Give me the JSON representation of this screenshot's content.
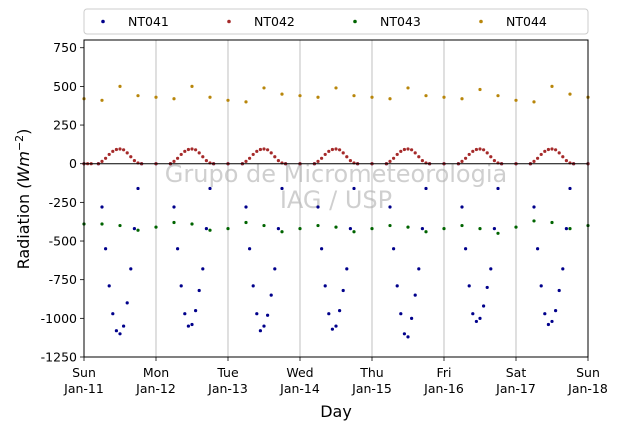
{
  "chart_data": {
    "type": "scatter",
    "xlabel": "Day",
    "ylabel": "Radiation",
    "ylabel_unit_math": "(Wm",
    "ylabel_unit_exp": "−2",
    "ylim": [
      -1250,
      800
    ],
    "yticks": [
      -1250,
      -1000,
      -750,
      -500,
      -250,
      0,
      250,
      500,
      750
    ],
    "xlim": [
      0,
      7
    ],
    "xticks": [
      {
        "day": 0,
        "weekday": "Sun",
        "date": "Jan-11"
      },
      {
        "day": 1,
        "weekday": "Mon",
        "date": "Jan-12"
      },
      {
        "day": 2,
        "weekday": "Tue",
        "date": "Jan-13"
      },
      {
        "day": 3,
        "weekday": "Wed",
        "date": "Jan-14"
      },
      {
        "day": 4,
        "weekday": "Thu",
        "date": "Jan-15"
      },
      {
        "day": 5,
        "weekday": "Fri",
        "date": "Jan-16"
      },
      {
        "day": 6,
        "weekday": "Sat",
        "date": "Jan-17"
      },
      {
        "day": 7,
        "weekday": "Sun",
        "date": "Jan-18"
      }
    ],
    "grid": "vertical",
    "zero_line": true,
    "legend_placement": "top",
    "watermark_line1": "Grupo de Micrometeorologia",
    "watermark_line2": "IAG / USP",
    "series": [
      {
        "name": "NT041",
        "color": "#00008b",
        "x": [
          0.0,
          0.2,
          0.25,
          0.3,
          0.35,
          0.4,
          0.45,
          0.5,
          0.55,
          0.6,
          0.65,
          0.7,
          0.75,
          0.8,
          1.0,
          1.2,
          1.25,
          1.3,
          1.35,
          1.4,
          1.45,
          1.5,
          1.55,
          1.6,
          1.65,
          1.7,
          1.75,
          1.8,
          2.0,
          2.2,
          2.25,
          2.3,
          2.35,
          2.4,
          2.45,
          2.5,
          2.55,
          2.6,
          2.65,
          2.7,
          2.75,
          2.8,
          3.0,
          3.2,
          3.25,
          3.3,
          3.35,
          3.4,
          3.45,
          3.5,
          3.55,
          3.6,
          3.65,
          3.7,
          3.75,
          3.8,
          4.0,
          4.2,
          4.25,
          4.3,
          4.35,
          4.4,
          4.45,
          4.5,
          4.55,
          4.6,
          4.65,
          4.7,
          4.75,
          4.8,
          5.0,
          5.2,
          5.25,
          5.3,
          5.35,
          5.4,
          5.45,
          5.5,
          5.55,
          5.6,
          5.65,
          5.7,
          5.75,
          5.8,
          6.0,
          6.2,
          6.25,
          6.3,
          6.35,
          6.4,
          6.45,
          6.5,
          6.55,
          6.6,
          6.65,
          6.7,
          6.75,
          6.8,
          7.0
        ],
        "y": [
          0,
          0,
          -280,
          -550,
          -790,
          -970,
          -1080,
          -1100,
          -1050,
          -900,
          -680,
          -420,
          -160,
          0,
          0,
          0,
          -280,
          -550,
          -790,
          -970,
          -1050,
          -1040,
          -950,
          -820,
          -680,
          -420,
          -160,
          0,
          0,
          0,
          -280,
          -550,
          -790,
          -970,
          -1080,
          -1050,
          -980,
          -850,
          -680,
          -420,
          -160,
          0,
          0,
          0,
          -280,
          -550,
          -790,
          -970,
          -1070,
          -1050,
          -950,
          -820,
          -680,
          -420,
          -160,
          0,
          0,
          0,
          -280,
          -550,
          -790,
          -970,
          -1100,
          -1120,
          -1000,
          -850,
          -680,
          -420,
          -160,
          0,
          0,
          0,
          -280,
          -550,
          -790,
          -970,
          -1020,
          -1000,
          -920,
          -800,
          -680,
          -420,
          -160,
          0,
          0,
          0,
          -280,
          -550,
          -790,
          -970,
          -1040,
          -1020,
          -950,
          -820,
          -680,
          -420,
          -160,
          0,
          0
        ]
      },
      {
        "name": "NT042",
        "color": "#a52a2a",
        "x": [
          0.0,
          0.05,
          0.1,
          0.2,
          0.25,
          0.3,
          0.35,
          0.4,
          0.45,
          0.5,
          0.55,
          0.6,
          0.65,
          0.7,
          0.75,
          0.8,
          1.0,
          1.2,
          1.25,
          1.3,
          1.35,
          1.4,
          1.45,
          1.5,
          1.55,
          1.6,
          1.65,
          1.7,
          1.75,
          1.8,
          2.0,
          2.2,
          2.25,
          2.3,
          2.35,
          2.4,
          2.45,
          2.5,
          2.55,
          2.6,
          2.65,
          2.7,
          2.75,
          2.8,
          3.0,
          3.2,
          3.25,
          3.3,
          3.35,
          3.4,
          3.45,
          3.5,
          3.55,
          3.6,
          3.65,
          3.7,
          3.75,
          3.8,
          4.0,
          4.2,
          4.25,
          4.3,
          4.35,
          4.4,
          4.45,
          4.5,
          4.55,
          4.6,
          4.65,
          4.7,
          4.75,
          4.8,
          5.0,
          5.2,
          5.25,
          5.3,
          5.35,
          5.4,
          5.45,
          5.5,
          5.55,
          5.6,
          5.65,
          5.7,
          5.75,
          5.8,
          6.0,
          6.2,
          6.25,
          6.3,
          6.35,
          6.4,
          6.45,
          6.5,
          6.55,
          6.6,
          6.65,
          6.7,
          6.75,
          6.8,
          7.0
        ],
        "y": [
          0,
          0,
          0,
          0,
          15,
          35,
          60,
          80,
          92,
          95,
          90,
          70,
          45,
          20,
          5,
          0,
          0,
          0,
          15,
          35,
          60,
          80,
          92,
          95,
          90,
          70,
          45,
          20,
          5,
          0,
          0,
          0,
          15,
          35,
          60,
          80,
          92,
          95,
          90,
          70,
          45,
          20,
          5,
          0,
          0,
          0,
          15,
          35,
          60,
          80,
          92,
          95,
          90,
          70,
          45,
          20,
          5,
          0,
          0,
          0,
          15,
          35,
          60,
          80,
          92,
          95,
          90,
          70,
          45,
          20,
          5,
          0,
          0,
          0,
          15,
          35,
          60,
          80,
          92,
          95,
          90,
          70,
          45,
          20,
          5,
          0,
          0,
          0,
          15,
          35,
          60,
          80,
          92,
          95,
          90,
          70,
          45,
          20,
          5,
          0,
          0
        ]
      },
      {
        "name": "NT043",
        "color": "#006400",
        "x": [
          0.0,
          0.25,
          0.5,
          0.75,
          1.0,
          1.25,
          1.5,
          1.75,
          2.0,
          2.25,
          2.5,
          2.75,
          3.0,
          3.25,
          3.5,
          3.75,
          4.0,
          4.25,
          4.5,
          4.75,
          5.0,
          5.25,
          5.5,
          5.75,
          6.0,
          6.25,
          6.5,
          6.75,
          7.0
        ],
        "y": [
          -390,
          -390,
          -400,
          -430,
          -410,
          -380,
          -390,
          -430,
          -420,
          -380,
          -400,
          -440,
          -420,
          -400,
          -410,
          -440,
          -420,
          -400,
          -410,
          -440,
          -420,
          -400,
          -420,
          -450,
          -410,
          -370,
          -380,
          -420,
          -400
        ]
      },
      {
        "name": "NT044",
        "color": "#b8860b",
        "x": [
          0.0,
          0.25,
          0.5,
          0.75,
          1.0,
          1.25,
          1.5,
          1.75,
          2.0,
          2.25,
          2.5,
          2.75,
          3.0,
          3.25,
          3.5,
          3.75,
          4.0,
          4.25,
          4.5,
          4.75,
          5.0,
          5.25,
          5.5,
          5.75,
          6.0,
          6.25,
          6.5,
          6.75,
          7.0
        ],
        "y": [
          420,
          410,
          500,
          440,
          430,
          420,
          500,
          430,
          410,
          400,
          490,
          450,
          440,
          430,
          490,
          440,
          430,
          420,
          490,
          440,
          430,
          420,
          480,
          440,
          410,
          400,
          500,
          450,
          430
        ]
      }
    ]
  }
}
